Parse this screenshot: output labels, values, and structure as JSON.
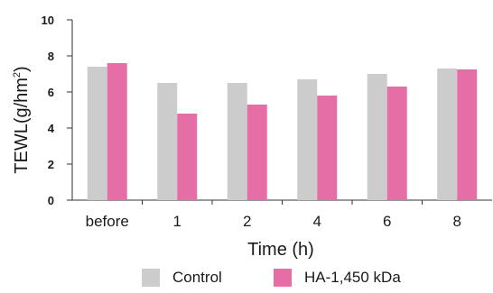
{
  "chart_data": {
    "type": "bar",
    "categories": [
      "before",
      "1",
      "2",
      "4",
      "6",
      "8"
    ],
    "series": [
      {
        "name": "Control",
        "values": [
          7.4,
          6.5,
          6.5,
          6.7,
          7.0,
          7.3
        ],
        "color": "#cccccc"
      },
      {
        "name": "HA-1,450 kDa",
        "values": [
          7.6,
          4.8,
          5.3,
          5.8,
          6.3,
          7.25
        ],
        "color": "#e66ea6"
      }
    ],
    "title": "",
    "xlabel": "Time (h)",
    "ylabel_main": "TEWL(g/hm",
    "ylabel_sup": "2",
    "ylabel_close": ")",
    "ylim": [
      0,
      10
    ],
    "yticks": [
      "0",
      "2",
      "4",
      "6",
      "8",
      "10"
    ],
    "grid": false,
    "legend_position": "bottom"
  }
}
